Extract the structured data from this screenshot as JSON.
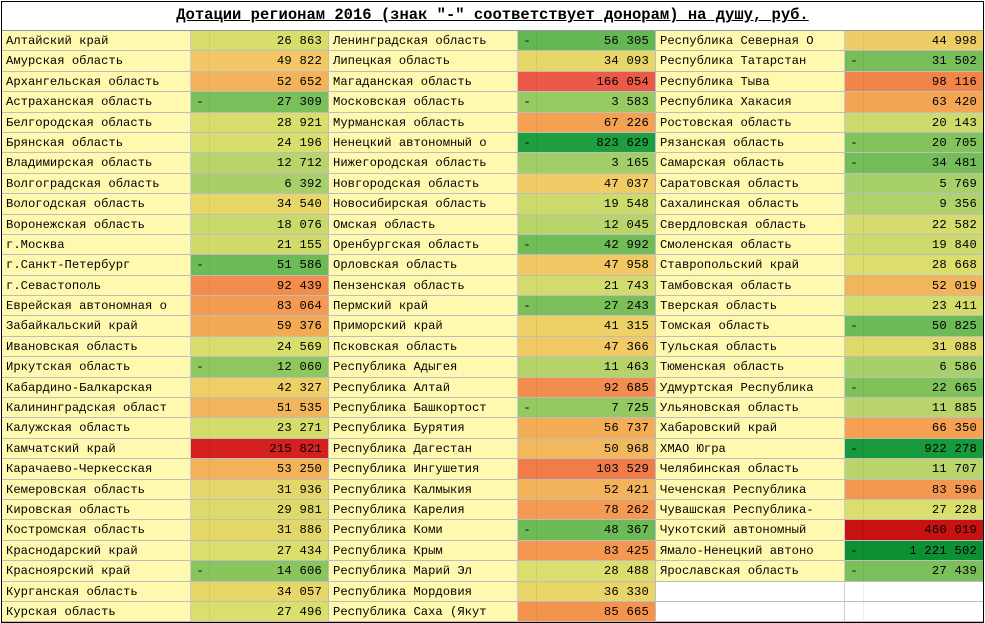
{
  "title": "Дотации регионам 2016 (знак \"-\" соответствует донорам) на душу, руб.",
  "label_bg": "#fff9b0",
  "columns": [
    [
      {
        "l": "Алтайский край",
        "s": "",
        "v": "26 863",
        "c": "#d7de6c"
      },
      {
        "l": "Амурская область",
        "s": "",
        "v": "49 822",
        "c": "#f3c765"
      },
      {
        "l": "Архангельская область",
        "s": "",
        "v": "52 652",
        "c": "#f3b35a"
      },
      {
        "l": "Астраханская область",
        "s": "-",
        "v": "27 309",
        "c": "#7abf5a"
      },
      {
        "l": "Белгородская область",
        "s": "",
        "v": "28 921",
        "c": "#d7de6c"
      },
      {
        "l": "Брянская область",
        "s": "",
        "v": "24 196",
        "c": "#d7de6c"
      },
      {
        "l": "Владимирская область",
        "s": "",
        "v": "12 712",
        "c": "#b8d46a"
      },
      {
        "l": "Волгоградская область",
        "s": "",
        "v": "6 392",
        "c": "#a8d06a"
      },
      {
        "l": "Вологодская область",
        "s": "",
        "v": "34 540",
        "c": "#e7d668"
      },
      {
        "l": "Воронежская область",
        "s": "",
        "v": "18 076",
        "c": "#c9da6c"
      },
      {
        "l": "г.Москва",
        "s": "",
        "v": "21 155",
        "c": "#d0db6c"
      },
      {
        "l": "г.Санкт-Петербург",
        "s": "-",
        "v": "51 586",
        "c": "#6cbb57"
      },
      {
        "l": "г.Севастополь",
        "s": "",
        "v": "92 439",
        "c": "#f38d4e"
      },
      {
        "l": "Еврейская автономная о",
        "s": "",
        "v": "83 064",
        "c": "#f49a52"
      },
      {
        "l": "Забайкальский край",
        "s": "",
        "v": "59 376",
        "c": "#f3aa55"
      },
      {
        "l": "Ивановская область",
        "s": "",
        "v": "24 569",
        "c": "#d7de6c"
      },
      {
        "l": "Иркутская область",
        "s": "-",
        "v": "12 060",
        "c": "#8ec75e"
      },
      {
        "l": "Кабардино-Балкарская",
        "s": "",
        "v": "42 327",
        "c": "#eecf66"
      },
      {
        "l": "Калининградская област",
        "s": "",
        "v": "51 535",
        "c": "#f3b55c"
      },
      {
        "l": "Калужская область",
        "s": "",
        "v": "23 271",
        "c": "#d4dd6c"
      },
      {
        "l": "Камчатский край",
        "s": "",
        "v": "215 821",
        "c": "#d42020"
      },
      {
        "l": "Карачаево-Черкесская",
        "s": "",
        "v": "53 250",
        "c": "#f3b158"
      },
      {
        "l": "Кемеровская область",
        "s": "",
        "v": "31 936",
        "c": "#e2d768"
      },
      {
        "l": "Кировская область",
        "s": "",
        "v": "29 981",
        "c": "#ddd96a"
      },
      {
        "l": "Костромская область",
        "s": "",
        "v": "31 886",
        "c": "#e2d768"
      },
      {
        "l": "Краснодарский край",
        "s": "",
        "v": "27 434",
        "c": "#d9de6c"
      },
      {
        "l": "Красноярский край",
        "s": "-",
        "v": "14 606",
        "c": "#88c55c"
      },
      {
        "l": "Курганская область",
        "s": "",
        "v": "34 057",
        "c": "#e7d668"
      },
      {
        "l": "Курская область",
        "s": "",
        "v": "27 496",
        "c": "#d9de6c"
      }
    ],
    [
      {
        "l": "Ленинградская область",
        "s": "-",
        "v": "56 305",
        "c": "#63b853"
      },
      {
        "l": "Липецкая область",
        "s": "",
        "v": "34 093",
        "c": "#e7d668"
      },
      {
        "l": "Магаданская область",
        "s": "",
        "v": "166 054",
        "c": "#ea5a46"
      },
      {
        "l": "Московская область",
        "s": "-",
        "v": "3 583",
        "c": "#97ca62"
      },
      {
        "l": "Мурманская область",
        "s": "",
        "v": "67 226",
        "c": "#f4a152"
      },
      {
        "l": "Ненецкий автономный о",
        "s": "-",
        "v": "823 629",
        "c": "#1f9e3f"
      },
      {
        "l": "Нижегородская область",
        "s": "",
        "v": "3 165",
        "c": "#a2ce68"
      },
      {
        "l": "Новгородская область",
        "s": "",
        "v": "47 037",
        "c": "#f1cb66"
      },
      {
        "l": "Новосибирская область",
        "s": "",
        "v": "19 548",
        "c": "#ccdb6c"
      },
      {
        "l": "Омская область",
        "s": "",
        "v": "12 045",
        "c": "#b8d46a"
      },
      {
        "l": "Оренбургская область",
        "s": "-",
        "v": "42 992",
        "c": "#70bc57"
      },
      {
        "l": "Орловская область",
        "s": "",
        "v": "47 958",
        "c": "#f1c864"
      },
      {
        "l": "Пензенская область",
        "s": "",
        "v": "21 743",
        "c": "#d1dc6c"
      },
      {
        "l": "Пермский край",
        "s": "-",
        "v": "27 243",
        "c": "#7abf5a"
      },
      {
        "l": "Приморский край",
        "s": "",
        "v": "41 315",
        "c": "#edd066"
      },
      {
        "l": "Псковская область",
        "s": "",
        "v": "47 366",
        "c": "#f1ca65"
      },
      {
        "l": "Республика Адыгея",
        "s": "",
        "v": "11 463",
        "c": "#b6d36a"
      },
      {
        "l": "Республика Алтай",
        "s": "",
        "v": "92 685",
        "c": "#f38d4e"
      },
      {
        "l": "Республика Башкортост",
        "s": "-",
        "v": "7 725",
        "c": "#93c960"
      },
      {
        "l": "Республика Бурятия",
        "s": "",
        "v": "56 737",
        "c": "#f3ad56"
      },
      {
        "l": "Республика Дагестан",
        "s": "",
        "v": "50 968",
        "c": "#f2b85e"
      },
      {
        "l": "Республика Ингушетия",
        "s": "",
        "v": "103 529",
        "c": "#f17c48"
      },
      {
        "l": "Республика Калмыкия",
        "s": "",
        "v": "52 421",
        "c": "#f3b35a"
      },
      {
        "l": "Республика Карелия",
        "s": "",
        "v": "78 262",
        "c": "#f49a52"
      },
      {
        "l": "Республика Коми",
        "s": "-",
        "v": "48 367",
        "c": "#6cbb57"
      },
      {
        "l": "Республика Крым",
        "s": "",
        "v": "83 425",
        "c": "#f49750"
      },
      {
        "l": "Республика Марий Эл",
        "s": "",
        "v": "28 488",
        "c": "#dbdd6c"
      },
      {
        "l": "Республика Мордовия",
        "s": "",
        "v": "36 330",
        "c": "#e9d467"
      },
      {
        "l": "Республика Саха (Якут",
        "s": "",
        "v": "85 665",
        "c": "#f4934e"
      }
    ],
    [
      {
        "l": "Республика Северная О",
        "s": "",
        "v": "44 998",
        "c": "#efcd66"
      },
      {
        "l": "Республика Татарстан",
        "s": "-",
        "v": "31 502",
        "c": "#77be58"
      },
      {
        "l": "Республика Тыва",
        "s": "",
        "v": "98 116",
        "c": "#f2844a"
      },
      {
        "l": "Республика Хакасия",
        "s": "",
        "v": "63 420",
        "c": "#f4a554"
      },
      {
        "l": "Ростовская область",
        "s": "",
        "v": "20 143",
        "c": "#cedb6c"
      },
      {
        "l": "Рязанская область",
        "s": "-",
        "v": "20 705",
        "c": "#82c35b"
      },
      {
        "l": "Самарская область",
        "s": "-",
        "v": "34 481",
        "c": "#74bd58"
      },
      {
        "l": "Саратовская область",
        "s": "",
        "v": "5 769",
        "c": "#a6d06a"
      },
      {
        "l": "Сахалинская область",
        "s": "",
        "v": "9 356",
        "c": "#b0d26a"
      },
      {
        "l": "Свердловская область",
        "s": "",
        "v": "22 582",
        "c": "#d3dc6c"
      },
      {
        "l": "Смоленская область",
        "s": "",
        "v": "19 840",
        "c": "#ccdb6c"
      },
      {
        "l": "Ставропольский край",
        "s": "",
        "v": "28 668",
        "c": "#dbdd6c"
      },
      {
        "l": "Тамбовская область",
        "s": "",
        "v": "52 019",
        "c": "#f3b55c"
      },
      {
        "l": "Тверская область",
        "s": "",
        "v": "23 411",
        "c": "#d4dd6c"
      },
      {
        "l": "Томская область",
        "s": "-",
        "v": "50 825",
        "c": "#6cbb57"
      },
      {
        "l": "Тульская область",
        "s": "",
        "v": "31 088",
        "c": "#e0d868"
      },
      {
        "l": "Тюменская область",
        "s": "",
        "v": "6 586",
        "c": "#a8d06a"
      },
      {
        "l": "Удмуртская Республика",
        "s": "-",
        "v": "22 665",
        "c": "#80c25a"
      },
      {
        "l": "Ульяновская область",
        "s": "",
        "v": "11 885",
        "c": "#b8d46a"
      },
      {
        "l": "Хабаровский край",
        "s": "",
        "v": "66 350",
        "c": "#f4a252"
      },
      {
        "l": "ХМАО Югра",
        "s": "-",
        "v": "922 278",
        "c": "#189a3c"
      },
      {
        "l": "Челябинская область",
        "s": "",
        "v": "11 707",
        "c": "#b8d46a"
      },
      {
        "l": "Чеченская Республика",
        "s": "",
        "v": "83 596",
        "c": "#f49750"
      },
      {
        "l": "Чувашская Республика-",
        "s": "",
        "v": "27 228",
        "c": "#d9de6c"
      },
      {
        "l": "Чукотский автономный",
        "s": "",
        "v": "460 019",
        "c": "#c81212"
      },
      {
        "l": "Ямало-Ненецкий автоно",
        "s": "-",
        "v": "1 221 502",
        "c": "#0d8f34"
      },
      {
        "l": "Ярославская область",
        "s": "-",
        "v": "27 439",
        "c": "#7abf5a"
      },
      {
        "l": "",
        "s": "",
        "v": "",
        "c": "#ffffff"
      },
      {
        "l": "",
        "s": "",
        "v": "",
        "c": "#ffffff"
      }
    ]
  ]
}
